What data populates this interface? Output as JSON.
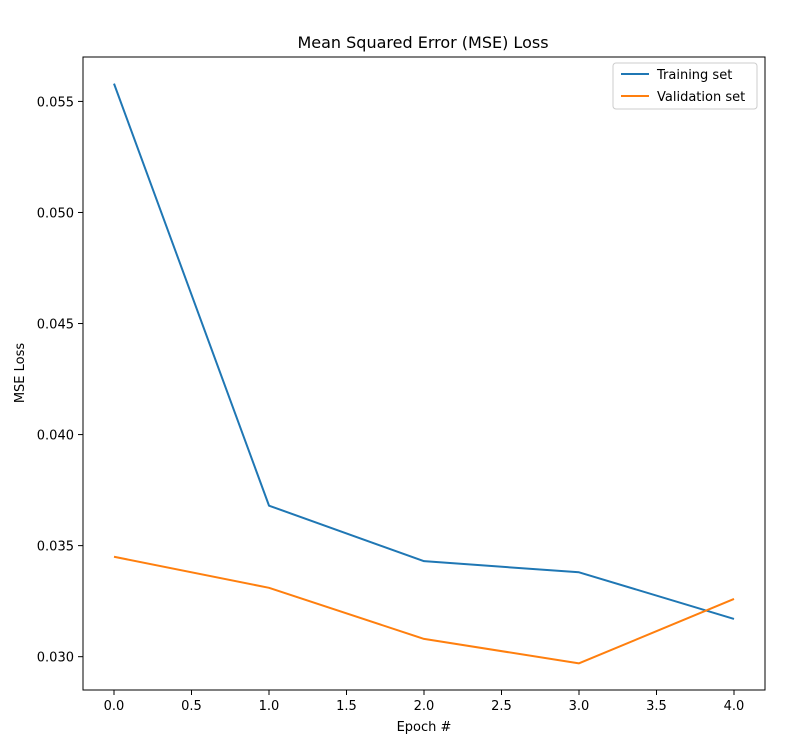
{
  "chart_data": {
    "type": "line",
    "title": "Mean Squared Error (MSE) Loss",
    "xlabel": "Epoch #",
    "ylabel": "MSE Loss",
    "xlim": [
      -0.2,
      4.2
    ],
    "ylim": [
      0.0285,
      0.057
    ],
    "xticks": [
      0.0,
      0.5,
      1.0,
      1.5,
      2.0,
      2.5,
      3.0,
      3.5,
      4.0
    ],
    "xtick_labels": [
      "0.0",
      "0.5",
      "1.0",
      "1.5",
      "2.0",
      "2.5",
      "3.0",
      "3.5",
      "4.0"
    ],
    "yticks": [
      0.03,
      0.035,
      0.04,
      0.045,
      0.05,
      0.055
    ],
    "ytick_labels": [
      "0.030",
      "0.035",
      "0.040",
      "0.045",
      "0.050",
      "0.055"
    ],
    "grid": false,
    "legend_position": "top-right",
    "x": [
      0,
      1,
      2,
      3,
      4
    ],
    "series": [
      {
        "name": "Training set",
        "color": "#1f77b4",
        "values": [
          0.0558,
          0.0368,
          0.0343,
          0.0338,
          0.0317
        ]
      },
      {
        "name": "Validation set",
        "color": "#ff7f0e",
        "values": [
          0.0345,
          0.0331,
          0.0308,
          0.0297,
          0.0326
        ]
      }
    ]
  }
}
